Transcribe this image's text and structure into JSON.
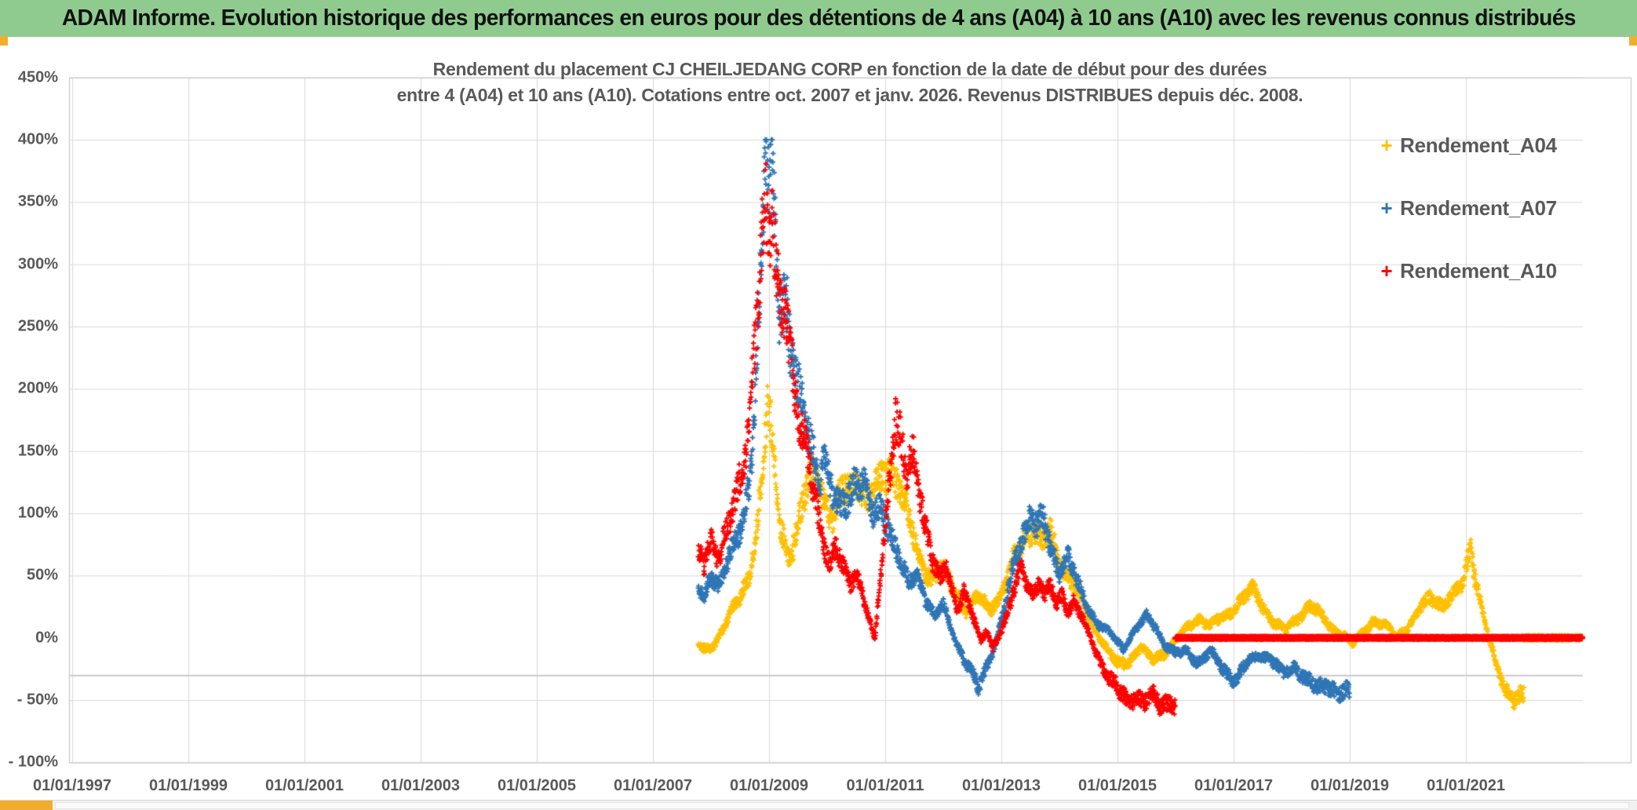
{
  "banner": {
    "title": "ADAM Informe. Evolution historique des performances en euros pour des détentions de 4 ans (A04) à 10 ans (A10) avec les revenus connus distribués"
  },
  "chart": {
    "title_line1": "Rendement du placement CJ CHEILJEDANG CORP en fonction de la date de début pour des durées",
    "title_line2": "entre 4 (A04) et 10 ans (A10). Cotations entre oct. 2007 et janv. 2026. Revenus DISTRIBUES depuis déc. 2008."
  },
  "colors": {
    "banner_green": "#8FCB8F",
    "gold_border": "#EFAF2D",
    "gridline": "#D9D9D9",
    "extra_line": "#C9C9C9",
    "plot_border": "#C6C6C6",
    "axis_text": "#595959",
    "series_a04": "#FFC000",
    "series_a07": "#2E75B6",
    "series_a10": "#FF0000"
  },
  "chart_data": {
    "type": "scatter",
    "title": "Rendement du placement CJ CHEILJEDANG CORP en fonction de la date de début pour des durées entre 4 (A04) et 10 ans (A10). Cotations entre oct. 2007 et janv. 2026. Revenus DISTRIBUES depuis déc. 2008.",
    "marker": "+",
    "grid": true,
    "legend_position": "right",
    "x_axis": {
      "type": "date",
      "tick_labels": [
        "01/01/1997",
        "01/01/1999",
        "01/01/2001",
        "01/01/2003",
        "01/01/2005",
        "01/01/2007",
        "01/01/2009",
        "01/01/2011",
        "01/01/2013",
        "01/01/2015",
        "01/01/2017",
        "01/01/2019",
        "01/01/2021"
      ],
      "start_year": 1997,
      "tick_step_years": 2,
      "axis_end_year": 2023.8
    },
    "y_axis": {
      "tick_labels": [
        "450%",
        "400%",
        "350%",
        "300%",
        "250%",
        "200%",
        "150%",
        "100%",
        "50%",
        "0%",
        "- 50%",
        "- 100%"
      ],
      "tick_values": [
        450,
        400,
        350,
        300,
        250,
        200,
        150,
        100,
        50,
        0,
        -50,
        -100
      ],
      "min": -100,
      "max": 450,
      "step": 50,
      "unit": "%",
      "no_gridline_at": 0,
      "extra_gridline_value": -30.3
    },
    "legend": [
      {
        "label": "Rendement_A04",
        "color": "#FFC000"
      },
      {
        "label": "Rendement_A07",
        "color": "#2E75B6"
      },
      {
        "label": "Rendement_A10",
        "color": "#FF0000"
      }
    ],
    "flat_zero_line": {
      "note": "returns not yet known plotted at 0",
      "from_year": 2016.0,
      "to_year": 2023.0,
      "value": 0,
      "color": "#FF0000",
      "thick": true
    },
    "series": [
      {
        "name": "Rendement_A04",
        "color": "#FFC000",
        "zero_segment": [
          2022.0,
          2023.0
        ],
        "anchors": [
          [
            2007.78,
            -5
          ],
          [
            2007.9,
            -12
          ],
          [
            2008.05,
            -6
          ],
          [
            2008.2,
            8
          ],
          [
            2008.35,
            22
          ],
          [
            2008.5,
            30
          ],
          [
            2008.65,
            48
          ],
          [
            2008.8,
            95
          ],
          [
            2008.92,
            160
          ],
          [
            2008.98,
            185
          ],
          [
            2009.08,
            140
          ],
          [
            2009.2,
            88
          ],
          [
            2009.35,
            65
          ],
          [
            2009.5,
            92
          ],
          [
            2009.65,
            118
          ],
          [
            2009.8,
            135
          ],
          [
            2009.95,
            112
          ],
          [
            2010.1,
            96
          ],
          [
            2010.3,
            118
          ],
          [
            2010.5,
            132
          ],
          [
            2010.7,
            108
          ],
          [
            2010.9,
            122
          ],
          [
            2011.05,
            138
          ],
          [
            2011.2,
            128
          ],
          [
            2011.4,
            95
          ],
          [
            2011.6,
            62
          ],
          [
            2011.8,
            48
          ],
          [
            2012.0,
            55
          ],
          [
            2012.2,
            38
          ],
          [
            2012.4,
            22
          ],
          [
            2012.6,
            33
          ],
          [
            2012.8,
            24
          ],
          [
            2013.0,
            35
          ],
          [
            2013.2,
            60
          ],
          [
            2013.4,
            82
          ],
          [
            2013.55,
            90
          ],
          [
            2013.7,
            76
          ],
          [
            2013.85,
            84
          ],
          [
            2014.0,
            62
          ],
          [
            2014.2,
            46
          ],
          [
            2014.4,
            28
          ],
          [
            2014.6,
            8
          ],
          [
            2014.8,
            -8
          ],
          [
            2015.0,
            -22
          ],
          [
            2015.2,
            -18
          ],
          [
            2015.4,
            -8
          ],
          [
            2015.6,
            -18
          ],
          [
            2015.8,
            -12
          ],
          [
            2016.0,
            -2
          ],
          [
            2016.2,
            8
          ],
          [
            2016.4,
            16
          ],
          [
            2016.6,
            10
          ],
          [
            2016.8,
            16
          ],
          [
            2017.0,
            24
          ],
          [
            2017.2,
            33
          ],
          [
            2017.35,
            38
          ],
          [
            2017.5,
            26
          ],
          [
            2017.7,
            12
          ],
          [
            2017.9,
            6
          ],
          [
            2018.1,
            16
          ],
          [
            2018.3,
            26
          ],
          [
            2018.5,
            18
          ],
          [
            2018.7,
            8
          ],
          [
            2018.9,
            2
          ],
          [
            2019.05,
            -6
          ],
          [
            2019.2,
            4
          ],
          [
            2019.4,
            14
          ],
          [
            2019.6,
            10
          ],
          [
            2019.8,
            2
          ],
          [
            2020.0,
            8
          ],
          [
            2020.2,
            22
          ],
          [
            2020.4,
            34
          ],
          [
            2020.6,
            26
          ],
          [
            2020.8,
            34
          ],
          [
            2020.95,
            44
          ],
          [
            2021.08,
            78
          ],
          [
            2021.15,
            52
          ],
          [
            2021.25,
            28
          ],
          [
            2021.4,
            -2
          ],
          [
            2021.55,
            -25
          ],
          [
            2021.7,
            -42
          ],
          [
            2021.85,
            -50
          ],
          [
            2022.0,
            -48
          ]
        ]
      },
      {
        "name": "Rendement_A07",
        "color": "#2E75B6",
        "zero_segment": [
          2019.0,
          2023.0
        ],
        "anchors": [
          [
            2007.78,
            40
          ],
          [
            2007.88,
            30
          ],
          [
            2008.0,
            52
          ],
          [
            2008.12,
            44
          ],
          [
            2008.25,
            58
          ],
          [
            2008.4,
            72
          ],
          [
            2008.55,
            92
          ],
          [
            2008.68,
            140
          ],
          [
            2008.78,
            215
          ],
          [
            2008.88,
            320
          ],
          [
            2008.94,
            388
          ],
          [
            2009.0,
            342
          ],
          [
            2009.04,
            396
          ],
          [
            2009.1,
            328
          ],
          [
            2009.18,
            268
          ],
          [
            2009.28,
            284
          ],
          [
            2009.38,
            232
          ],
          [
            2009.5,
            196
          ],
          [
            2009.62,
            170
          ],
          [
            2009.74,
            150
          ],
          [
            2009.85,
            132
          ],
          [
            2009.95,
            145
          ],
          [
            2010.05,
            122
          ],
          [
            2010.2,
            100
          ],
          [
            2010.35,
            114
          ],
          [
            2010.5,
            130
          ],
          [
            2010.65,
            118
          ],
          [
            2010.8,
            96
          ],
          [
            2010.95,
            108
          ],
          [
            2011.1,
            84
          ],
          [
            2011.25,
            62
          ],
          [
            2011.4,
            42
          ],
          [
            2011.55,
            54
          ],
          [
            2011.7,
            32
          ],
          [
            2011.85,
            16
          ],
          [
            2012.0,
            26
          ],
          [
            2012.15,
            6
          ],
          [
            2012.3,
            -12
          ],
          [
            2012.45,
            -26
          ],
          [
            2012.6,
            -40
          ],
          [
            2012.75,
            -22
          ],
          [
            2012.9,
            -4
          ],
          [
            2013.05,
            22
          ],
          [
            2013.2,
            56
          ],
          [
            2013.35,
            80
          ],
          [
            2013.5,
            100
          ],
          [
            2013.62,
            86
          ],
          [
            2013.72,
            94
          ],
          [
            2013.85,
            72
          ],
          [
            2014.0,
            56
          ],
          [
            2014.15,
            64
          ],
          [
            2014.3,
            44
          ],
          [
            2014.5,
            24
          ],
          [
            2014.7,
            10
          ],
          [
            2014.9,
            2
          ],
          [
            2015.1,
            -8
          ],
          [
            2015.3,
            6
          ],
          [
            2015.5,
            16
          ],
          [
            2015.65,
            10
          ],
          [
            2015.8,
            -4
          ],
          [
            2016.0,
            -14
          ],
          [
            2016.2,
            -10
          ],
          [
            2016.4,
            -20
          ],
          [
            2016.6,
            -12
          ],
          [
            2016.85,
            -26
          ],
          [
            2017.05,
            -34
          ],
          [
            2017.25,
            -20
          ],
          [
            2017.45,
            -12
          ],
          [
            2017.65,
            -18
          ],
          [
            2017.85,
            -30
          ],
          [
            2018.05,
            -22
          ],
          [
            2018.25,
            -34
          ],
          [
            2018.45,
            -42
          ],
          [
            2018.6,
            -36
          ],
          [
            2018.8,
            -44
          ],
          [
            2019.0,
            -46
          ]
        ]
      },
      {
        "name": "Rendement_A10",
        "color": "#FF0000",
        "zero_segment": [
          2016.0,
          2023.0
        ],
        "zero_thick": true,
        "anchors": [
          [
            2007.78,
            70
          ],
          [
            2007.88,
            56
          ],
          [
            2008.0,
            78
          ],
          [
            2008.12,
            64
          ],
          [
            2008.25,
            88
          ],
          [
            2008.4,
            108
          ],
          [
            2008.55,
            128
          ],
          [
            2008.66,
            175
          ],
          [
            2008.76,
            245
          ],
          [
            2008.86,
            325
          ],
          [
            2008.93,
            362
          ],
          [
            2009.0,
            308
          ],
          [
            2009.05,
            352
          ],
          [
            2009.12,
            288
          ],
          [
            2009.2,
            252
          ],
          [
            2009.3,
            268
          ],
          [
            2009.4,
            222
          ],
          [
            2009.5,
            182
          ],
          [
            2009.62,
            152
          ],
          [
            2009.74,
            122
          ],
          [
            2009.85,
            96
          ],
          [
            2009.95,
            76
          ],
          [
            2010.05,
            62
          ],
          [
            2010.15,
            74
          ],
          [
            2010.28,
            54
          ],
          [
            2010.4,
            42
          ],
          [
            2010.5,
            54
          ],
          [
            2010.62,
            36
          ],
          [
            2010.72,
            16
          ],
          [
            2010.82,
            -2
          ],
          [
            2010.9,
            38
          ],
          [
            2011.0,
            88
          ],
          [
            2011.1,
            140
          ],
          [
            2011.18,
            183
          ],
          [
            2011.28,
            160
          ],
          [
            2011.38,
            132
          ],
          [
            2011.48,
            142
          ],
          [
            2011.6,
            112
          ],
          [
            2011.72,
            86
          ],
          [
            2011.84,
            62
          ],
          [
            2011.95,
            46
          ],
          [
            2012.05,
            56
          ],
          [
            2012.15,
            36
          ],
          [
            2012.25,
            22
          ],
          [
            2012.35,
            40
          ],
          [
            2012.45,
            26
          ],
          [
            2012.55,
            12
          ],
          [
            2012.65,
            -4
          ],
          [
            2012.75,
            6
          ],
          [
            2012.85,
            -8
          ],
          [
            2012.95,
            2
          ],
          [
            2013.05,
            12
          ],
          [
            2013.15,
            26
          ],
          [
            2013.25,
            42
          ],
          [
            2013.35,
            54
          ],
          [
            2013.45,
            44
          ],
          [
            2013.55,
            36
          ],
          [
            2013.65,
            46
          ],
          [
            2013.75,
            32
          ],
          [
            2013.85,
            42
          ],
          [
            2013.95,
            26
          ],
          [
            2014.05,
            36
          ],
          [
            2014.15,
            22
          ],
          [
            2014.25,
            30
          ],
          [
            2014.4,
            14
          ],
          [
            2014.55,
            -2
          ],
          [
            2014.7,
            -18
          ],
          [
            2014.85,
            -32
          ],
          [
            2015.0,
            -42
          ],
          [
            2015.15,
            -50
          ],
          [
            2015.3,
            -46
          ],
          [
            2015.45,
            -52
          ],
          [
            2015.6,
            -48
          ],
          [
            2015.75,
            -54
          ],
          [
            2015.9,
            -50
          ],
          [
            2016.0,
            -52
          ]
        ]
      }
    ]
  }
}
